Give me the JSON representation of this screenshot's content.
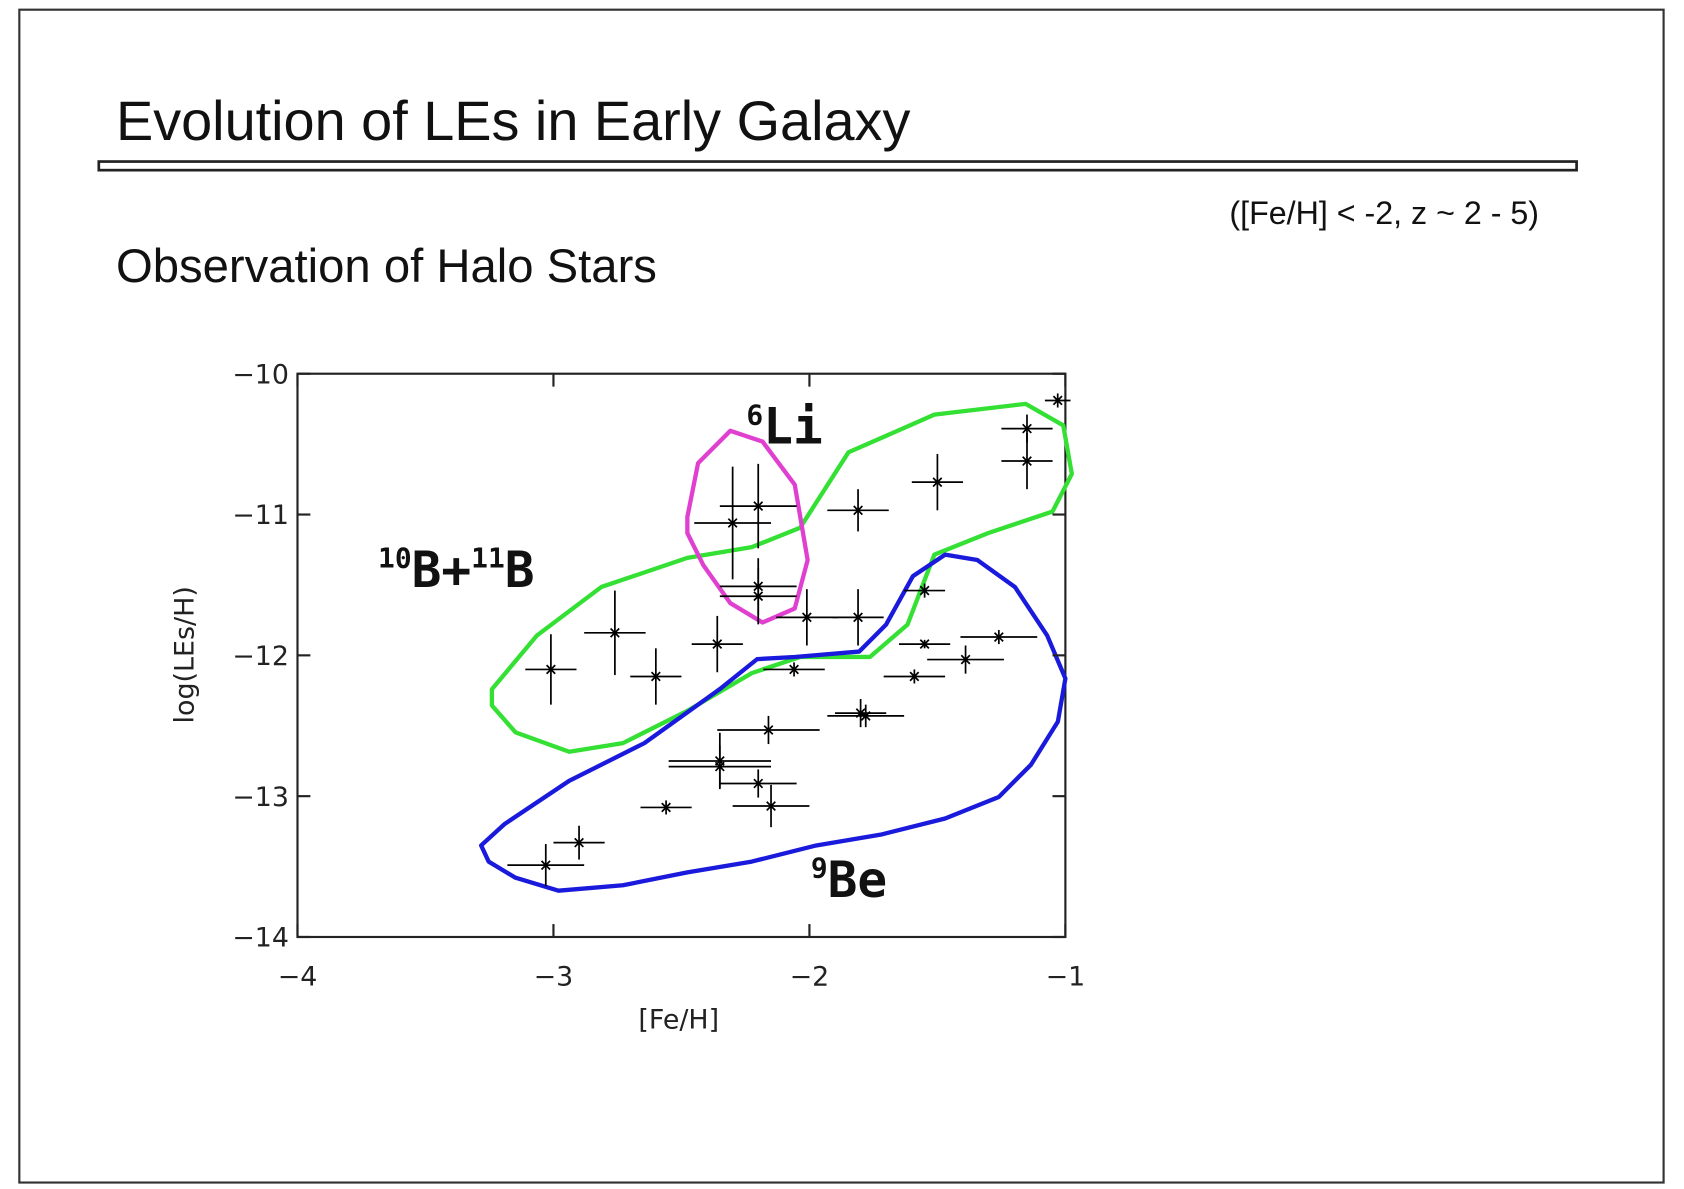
{
  "slide": {
    "title": "Evolution of LEs in Early Galaxy",
    "note": "([Fe/H] < -2,  z ~ 2 - 5)",
    "heading": "Observation of Halo Stars"
  },
  "chart_data": {
    "type": "scatter",
    "xlabel": "[Fe/H]",
    "ylabel": "log(LEs/H)",
    "xlim": [
      -4,
      -1
    ],
    "ylim": [
      -14,
      -10
    ],
    "xticks": [
      {
        "value": -4,
        "label": "−4"
      },
      {
        "value": -3,
        "label": "−3"
      },
      {
        "value": -2,
        "label": "−2"
      },
      {
        "value": -1,
        "label": "−1"
      }
    ],
    "yticks": [
      {
        "value": -10,
        "label": "−10"
      },
      {
        "value": -11,
        "label": "−11"
      },
      {
        "value": -12,
        "label": "−12"
      },
      {
        "value": -13,
        "label": "−13"
      },
      {
        "value": -14,
        "label": "−14"
      }
    ],
    "annotations": [
      [
        "10",
        "B+",
        "11",
        "B"
      ],
      [
        "6",
        "Li"
      ],
      [
        "9",
        "Be"
      ]
    ],
    "series": [
      {
        "color": "#000000",
        "x": [
          -3.01,
          -2.76,
          -2.6,
          -2.36,
          -2.01,
          -1.81,
          -1.81,
          -1.5,
          -1.15,
          -1.15,
          -1.03,
          -2.3,
          -2.2,
          -2.2,
          -2.2,
          -3.03,
          -2.9,
          -2.56,
          -2.35,
          -2.35,
          -2.2,
          -2.15,
          -2.16,
          -2.06,
          -1.78,
          -1.8,
          -1.59,
          -1.55,
          -1.39,
          -1.26,
          -1.55
        ],
        "y": [
          -12.1,
          -11.84,
          -12.15,
          -11.92,
          -11.73,
          -11.73,
          -10.97,
          -10.77,
          -10.62,
          -10.39,
          -10.19,
          -11.06,
          -10.94,
          -11.51,
          -11.58,
          -13.49,
          -13.33,
          -13.08,
          -12.75,
          -12.79,
          -12.91,
          -13.07,
          -12.53,
          -12.1,
          -12.43,
          -12.41,
          -12.15,
          -11.92,
          -12.03,
          -11.87,
          -11.54
        ],
        "xerr": [
          0.1,
          0.12,
          0.1,
          0.1,
          0.12,
          0.1,
          0.12,
          0.1,
          0.1,
          0.1,
          0.05,
          0.15,
          0.15,
          0.15,
          0.15,
          0.15,
          0.1,
          0.1,
          0.2,
          0.2,
          0.15,
          0.15,
          0.2,
          0.12,
          0.15,
          0.1,
          0.12,
          0.1,
          0.15,
          0.15,
          0.08
        ],
        "yerr": [
          0.25,
          0.3,
          0.2,
          0.2,
          0.2,
          0.2,
          0.15,
          0.2,
          0.2,
          0.1,
          0.05,
          0.4,
          0.3,
          0.2,
          0.2,
          0.15,
          0.12,
          0.05,
          0.2,
          0.15,
          0.1,
          0.15,
          0.1,
          0.05,
          0.08,
          0.1,
          0.05,
          0.03,
          0.1,
          0.05,
          0.05
        ]
      }
    ]
  }
}
